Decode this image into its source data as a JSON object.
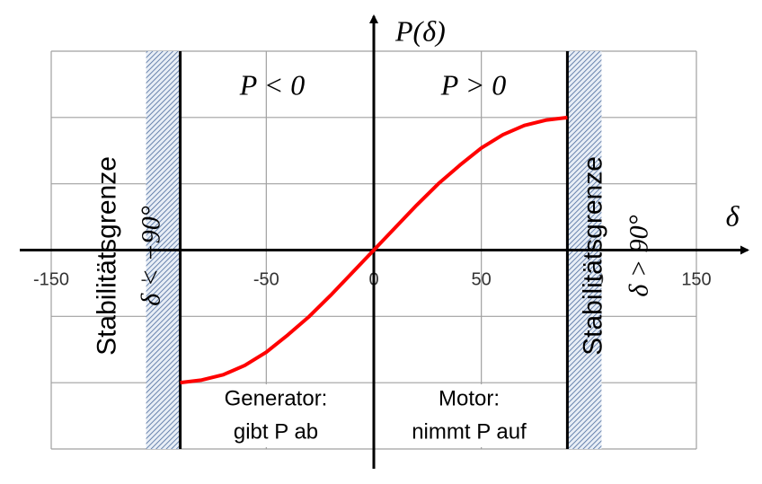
{
  "chart_data": {
    "type": "line",
    "y_label": "P(δ)",
    "x_label": "δ",
    "region_labels": [
      "P < 0",
      "P > 0"
    ],
    "limit_title": "Stabilitätsgrenze",
    "limits": [
      {
        "value": -90,
        "label": "δ < −90°"
      },
      {
        "value": 90,
        "label": "δ > 90°"
      }
    ],
    "notes": [
      [
        "Generator:",
        "gibt P ab"
      ],
      [
        "Motor:",
        "nimmt P auf"
      ]
    ],
    "x": [
      -90,
      -80,
      -70,
      -60,
      -50,
      -40,
      -30,
      -20,
      -10,
      0,
      10,
      20,
      30,
      40,
      50,
      60,
      70,
      80,
      90
    ],
    "series": [
      {
        "color": "#ff0000",
        "values": [
          -1,
          -0.98,
          -0.94,
          -0.87,
          -0.77,
          -0.64,
          -0.5,
          -0.34,
          -0.17,
          0,
          0.17,
          0.34,
          0.5,
          0.64,
          0.77,
          0.87,
          0.94,
          0.98,
          1
        ]
      }
    ],
    "xlim": [
      -150,
      150
    ],
    "ylim": [
      -1.5,
      1.5
    ],
    "xticks": [
      -150,
      -100,
      -50,
      0,
      50,
      100,
      150
    ],
    "yticks_unlabeled": [
      -1.5,
      -1,
      -0.5,
      0,
      0.5,
      1,
      1.5
    ],
    "grid": true
  }
}
